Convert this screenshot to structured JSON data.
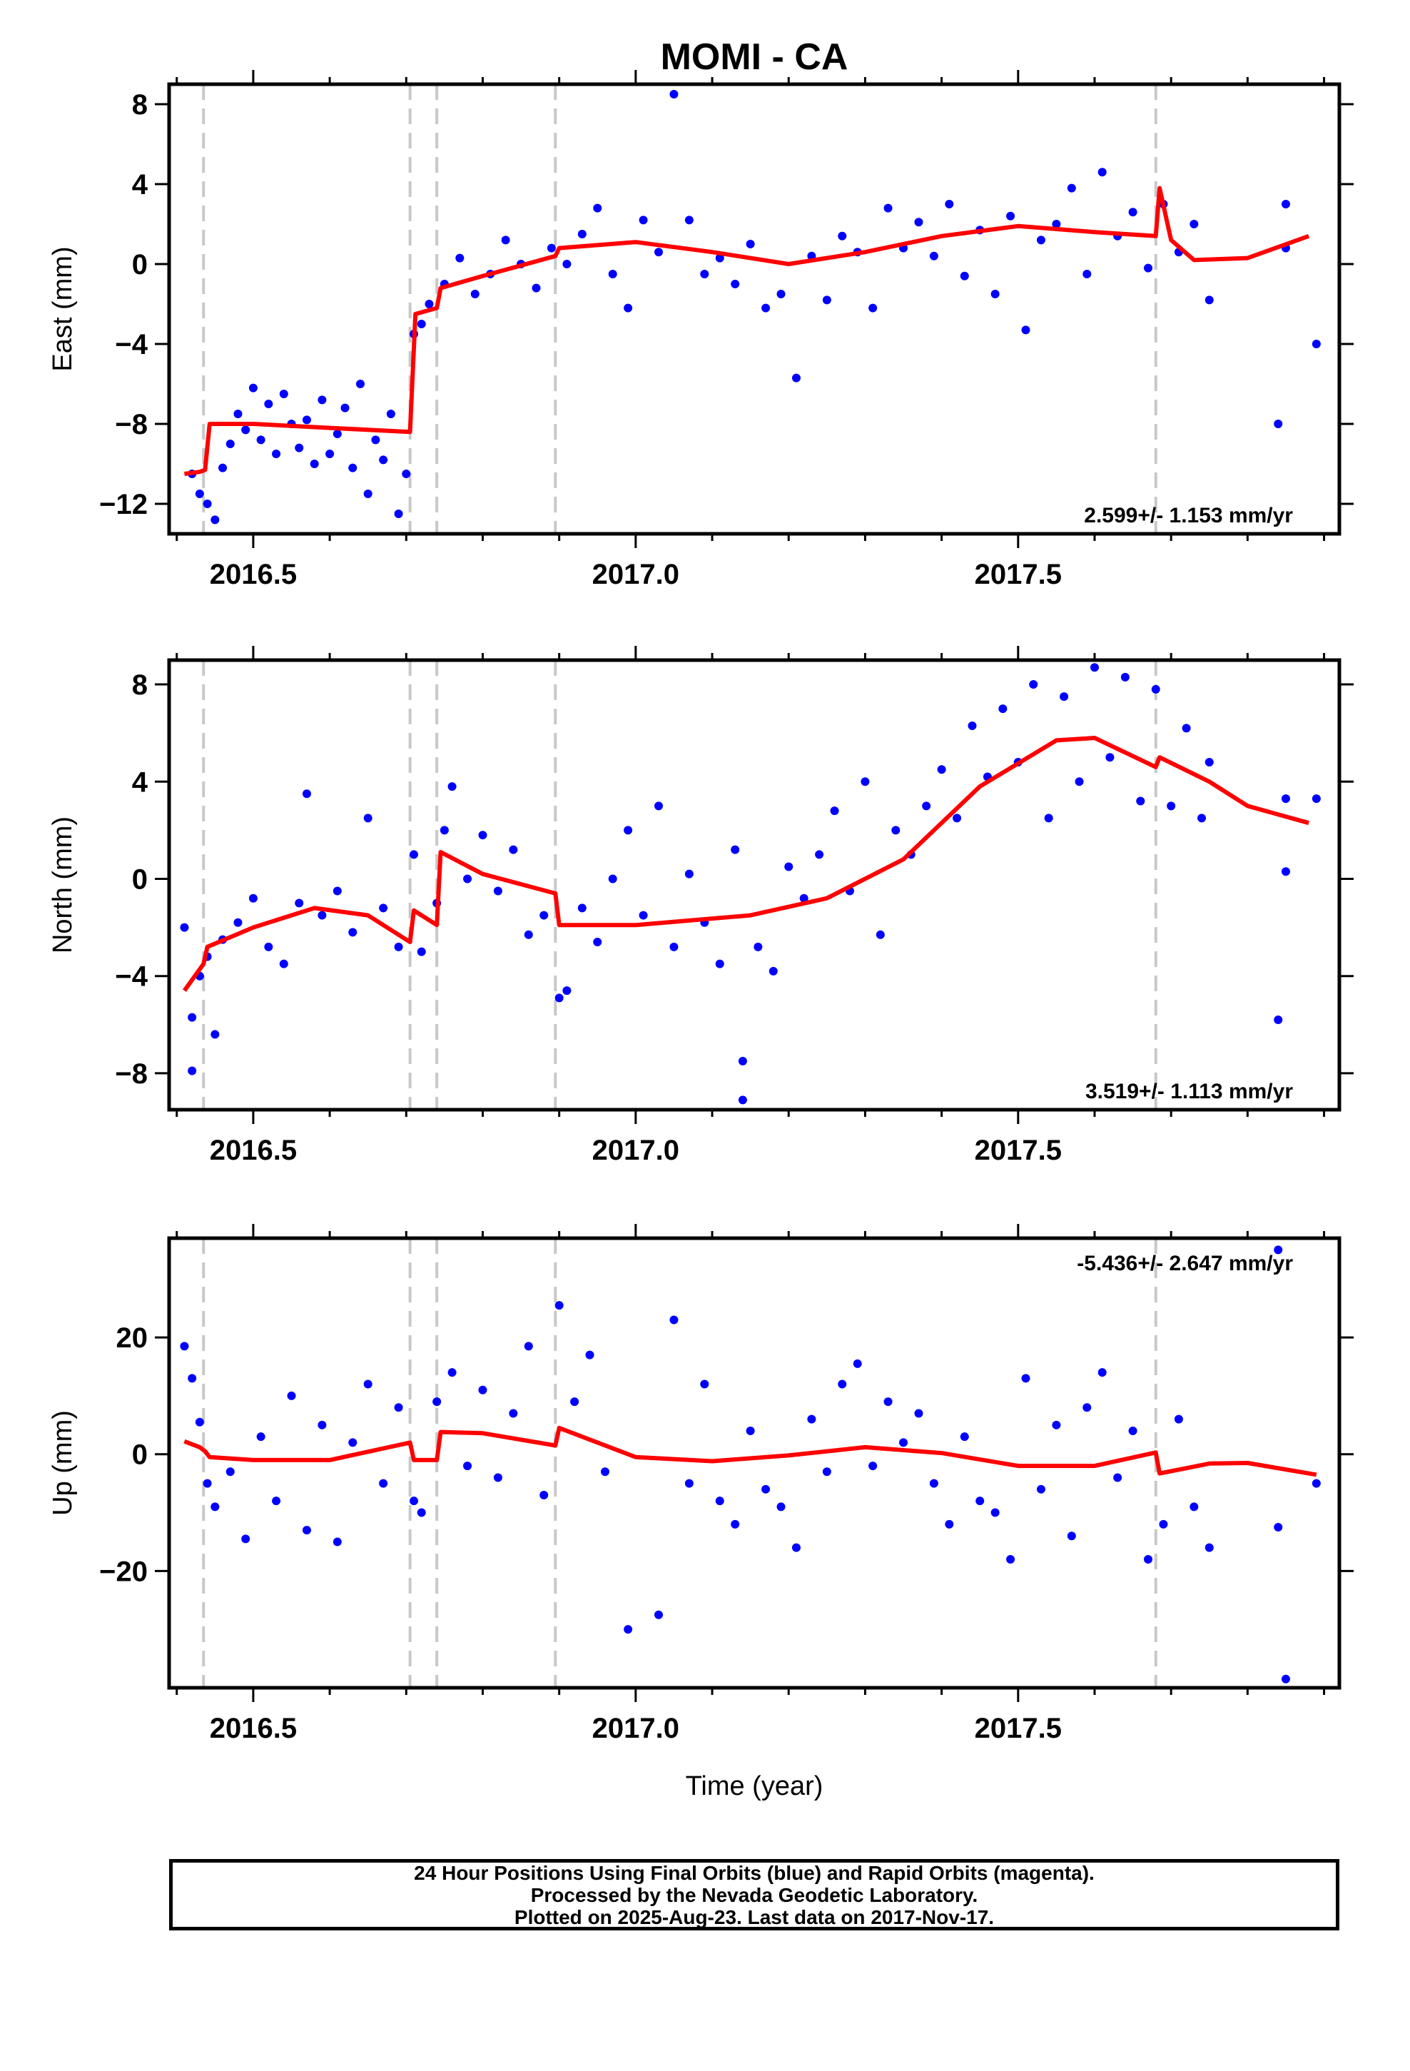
{
  "title": "MOMI - CA",
  "footer": {
    "line1": "24 Hour Positions Using Final Orbits (blue) and Rapid Orbits (magenta).",
    "line2": "Processed by the Nevada Geodetic Laboratory.",
    "line3": "Plotted on 2025-Aug-23. Last data on 2017-Nov-17."
  },
  "colors": {
    "points": "#0000ff",
    "model": "#ff0000",
    "event_lines": "#c8c8c8",
    "frame": "#000000"
  },
  "chart_data": [
    {
      "type": "scatter",
      "panel": "east",
      "ylabel": "East (mm)",
      "xlabel": "",
      "xlim": [
        2016.39,
        2017.92
      ],
      "ylim": [
        -13.5,
        9
      ],
      "yticks": [
        8,
        4,
        0,
        -4,
        -8,
        -12
      ],
      "xticks": [
        2016.5,
        2017.0,
        2017.5
      ],
      "grid": false,
      "rate_label": "2.599+/- 1.153 mm/yr",
      "rate_position": "bottom-right",
      "event_lines_x": [
        2016.435,
        2016.705,
        2016.74,
        2016.895,
        2017.68
      ],
      "model_line": [
        [
          2016.41,
          -10.5
        ],
        [
          2016.43,
          -10.4
        ],
        [
          2016.437,
          -10.3
        ],
        [
          2016.443,
          -8.0
        ],
        [
          2016.5,
          -8.0
        ],
        [
          2016.6,
          -8.2
        ],
        [
          2016.705,
          -8.4
        ],
        [
          2016.712,
          -2.5
        ],
        [
          2016.74,
          -2.2
        ],
        [
          2016.745,
          -1.2
        ],
        [
          2016.8,
          -0.6
        ],
        [
          2016.895,
          0.4
        ],
        [
          2016.9,
          0.8
        ],
        [
          2017.0,
          1.1
        ],
        [
          2017.1,
          0.6
        ],
        [
          2017.2,
          0.0
        ],
        [
          2017.3,
          0.6
        ],
        [
          2017.4,
          1.4
        ],
        [
          2017.5,
          1.9
        ],
        [
          2017.6,
          1.6
        ],
        [
          2017.68,
          1.4
        ],
        [
          2017.685,
          3.8
        ],
        [
          2017.7,
          1.2
        ],
        [
          2017.73,
          0.2
        ],
        [
          2017.8,
          0.3
        ],
        [
          2017.88,
          1.4
        ]
      ],
      "points": [
        [
          2016.42,
          -10.5
        ],
        [
          2016.43,
          -11.5
        ],
        [
          2016.44,
          -12.0
        ],
        [
          2016.45,
          -12.8
        ],
        [
          2016.46,
          -10.2
        ],
        [
          2016.47,
          -9.0
        ],
        [
          2016.48,
          -7.5
        ],
        [
          2016.49,
          -8.3
        ],
        [
          2016.5,
          -6.2
        ],
        [
          2016.51,
          -8.8
        ],
        [
          2016.52,
          -7.0
        ],
        [
          2016.53,
          -9.5
        ],
        [
          2016.54,
          -6.5
        ],
        [
          2016.55,
          -8.0
        ],
        [
          2016.56,
          -9.2
        ],
        [
          2016.57,
          -7.8
        ],
        [
          2016.58,
          -10.0
        ],
        [
          2016.59,
          -6.8
        ],
        [
          2016.6,
          -9.5
        ],
        [
          2016.61,
          -8.5
        ],
        [
          2016.62,
          -7.2
        ],
        [
          2016.63,
          -10.2
        ],
        [
          2016.64,
          -6.0
        ],
        [
          2016.65,
          -11.5
        ],
        [
          2016.66,
          -8.8
        ],
        [
          2016.67,
          -9.8
        ],
        [
          2016.68,
          -7.5
        ],
        [
          2016.69,
          -12.5
        ],
        [
          2016.7,
          -10.5
        ],
        [
          2016.71,
          -3.5
        ],
        [
          2016.72,
          -3.0
        ],
        [
          2016.73,
          -2.0
        ],
        [
          2016.75,
          -1.0
        ],
        [
          2016.77,
          0.3
        ],
        [
          2016.79,
          -1.5
        ],
        [
          2016.81,
          -0.5
        ],
        [
          2016.83,
          1.2
        ],
        [
          2016.85,
          0.0
        ],
        [
          2016.87,
          -1.2
        ],
        [
          2016.89,
          0.8
        ],
        [
          2016.91,
          0.0
        ],
        [
          2016.93,
          1.5
        ],
        [
          2016.95,
          2.8
        ],
        [
          2016.97,
          -0.5
        ],
        [
          2016.99,
          -2.2
        ],
        [
          2017.01,
          2.2
        ],
        [
          2017.03,
          0.6
        ],
        [
          2017.05,
          8.5
        ],
        [
          2017.07,
          2.2
        ],
        [
          2017.09,
          -0.5
        ],
        [
          2017.11,
          0.3
        ],
        [
          2017.13,
          -1.0
        ],
        [
          2017.15,
          1.0
        ],
        [
          2017.17,
          -2.2
        ],
        [
          2017.19,
          -1.5
        ],
        [
          2017.21,
          -5.7
        ],
        [
          2017.23,
          0.4
        ],
        [
          2017.25,
          -1.8
        ],
        [
          2017.27,
          1.4
        ],
        [
          2017.29,
          0.6
        ],
        [
          2017.31,
          -2.2
        ],
        [
          2017.33,
          2.8
        ],
        [
          2017.35,
          0.8
        ],
        [
          2017.37,
          2.1
        ],
        [
          2017.39,
          0.4
        ],
        [
          2017.41,
          3.0
        ],
        [
          2017.43,
          -0.6
        ],
        [
          2017.45,
          1.7
        ],
        [
          2017.47,
          -1.5
        ],
        [
          2017.49,
          2.4
        ],
        [
          2017.51,
          -3.3
        ],
        [
          2017.53,
          1.2
        ],
        [
          2017.55,
          2.0
        ],
        [
          2017.57,
          3.8
        ],
        [
          2017.59,
          -0.5
        ],
        [
          2017.61,
          4.6
        ],
        [
          2017.63,
          1.4
        ],
        [
          2017.65,
          2.6
        ],
        [
          2017.67,
          -0.2
        ],
        [
          2017.69,
          3.0
        ],
        [
          2017.71,
          0.6
        ],
        [
          2017.73,
          2.0
        ],
        [
          2017.75,
          -1.8
        ],
        [
          2017.84,
          -8.0
        ],
        [
          2017.85,
          0.8
        ],
        [
          2017.85,
          3.0
        ],
        [
          2017.89,
          -4.0
        ]
      ]
    },
    {
      "type": "scatter",
      "panel": "north",
      "ylabel": "North (mm)",
      "xlabel": "",
      "xlim": [
        2016.39,
        2017.92
      ],
      "ylim": [
        -9.5,
        9
      ],
      "yticks": [
        8,
        4,
        0,
        -4,
        -8
      ],
      "xticks": [
        2016.5,
        2017.0,
        2017.5
      ],
      "grid": false,
      "rate_label": "3.519+/- 1.113 mm/yr",
      "rate_position": "bottom-right",
      "event_lines_x": [
        2016.435,
        2016.705,
        2016.74,
        2016.895,
        2017.68
      ],
      "model_line": [
        [
          2016.41,
          -4.6
        ],
        [
          2016.435,
          -3.5
        ],
        [
          2016.44,
          -2.8
        ],
        [
          2016.5,
          -2.0
        ],
        [
          2016.58,
          -1.2
        ],
        [
          2016.65,
          -1.5
        ],
        [
          2016.705,
          -2.6
        ],
        [
          2016.71,
          -1.3
        ],
        [
          2016.74,
          -1.9
        ],
        [
          2016.745,
          1.1
        ],
        [
          2016.8,
          0.2
        ],
        [
          2016.895,
          -0.6
        ],
        [
          2016.9,
          -1.9
        ],
        [
          2017.0,
          -1.9
        ],
        [
          2017.15,
          -1.5
        ],
        [
          2017.25,
          -0.8
        ],
        [
          2017.35,
          0.8
        ],
        [
          2017.45,
          3.8
        ],
        [
          2017.55,
          5.7
        ],
        [
          2017.6,
          5.8
        ],
        [
          2017.68,
          4.6
        ],
        [
          2017.685,
          5.0
        ],
        [
          2017.75,
          4.0
        ],
        [
          2017.8,
          3.0
        ],
        [
          2017.88,
          2.3
        ]
      ],
      "points": [
        [
          2016.41,
          -2.0
        ],
        [
          2016.42,
          -5.7
        ],
        [
          2016.42,
          -7.9
        ],
        [
          2016.43,
          -4.0
        ],
        [
          2016.44,
          -3.2
        ],
        [
          2016.45,
          -6.4
        ],
        [
          2016.46,
          -2.5
        ],
        [
          2016.48,
          -1.8
        ],
        [
          2016.5,
          -0.8
        ],
        [
          2016.52,
          -2.8
        ],
        [
          2016.54,
          -3.5
        ],
        [
          2016.56,
          -1.0
        ],
        [
          2016.57,
          3.5
        ],
        [
          2016.59,
          -1.5
        ],
        [
          2016.61,
          -0.5
        ],
        [
          2016.63,
          -2.2
        ],
        [
          2016.65,
          2.5
        ],
        [
          2016.67,
          -1.2
        ],
        [
          2016.69,
          -2.8
        ],
        [
          2016.71,
          1.0
        ],
        [
          2016.72,
          -3.0
        ],
        [
          2016.74,
          -1.0
        ],
        [
          2016.75,
          2.0
        ],
        [
          2016.76,
          3.8
        ],
        [
          2016.78,
          0.0
        ],
        [
          2016.8,
          1.8
        ],
        [
          2016.82,
          -0.5
        ],
        [
          2016.84,
          1.2
        ],
        [
          2016.86,
          -2.3
        ],
        [
          2016.88,
          -1.5
        ],
        [
          2016.9,
          -4.9
        ],
        [
          2016.91,
          -4.6
        ],
        [
          2016.93,
          -1.2
        ],
        [
          2016.95,
          -2.6
        ],
        [
          2016.97,
          0.0
        ],
        [
          2016.99,
          2.0
        ],
        [
          2017.01,
          -1.5
        ],
        [
          2017.03,
          3.0
        ],
        [
          2017.05,
          -2.8
        ],
        [
          2017.07,
          0.2
        ],
        [
          2017.09,
          -1.8
        ],
        [
          2017.11,
          -3.5
        ],
        [
          2017.13,
          1.2
        ],
        [
          2017.14,
          -7.5
        ],
        [
          2017.14,
          -9.1
        ],
        [
          2017.16,
          -2.8
        ],
        [
          2017.18,
          -3.8
        ],
        [
          2017.2,
          0.5
        ],
        [
          2017.22,
          -0.8
        ],
        [
          2017.24,
          1.0
        ],
        [
          2017.26,
          2.8
        ],
        [
          2017.28,
          -0.5
        ],
        [
          2017.3,
          4.0
        ],
        [
          2017.32,
          -2.3
        ],
        [
          2017.34,
          2.0
        ],
        [
          2017.36,
          1.0
        ],
        [
          2017.38,
          3.0
        ],
        [
          2017.4,
          4.5
        ],
        [
          2017.42,
          2.5
        ],
        [
          2017.44,
          6.3
        ],
        [
          2017.46,
          4.2
        ],
        [
          2017.48,
          7.0
        ],
        [
          2017.5,
          4.8
        ],
        [
          2017.52,
          8.0
        ],
        [
          2017.54,
          2.5
        ],
        [
          2017.56,
          7.5
        ],
        [
          2017.58,
          4.0
        ],
        [
          2017.6,
          8.7
        ],
        [
          2017.62,
          5.0
        ],
        [
          2017.64,
          8.3
        ],
        [
          2017.66,
          3.2
        ],
        [
          2017.68,
          7.8
        ],
        [
          2017.7,
          3.0
        ],
        [
          2017.72,
          6.2
        ],
        [
          2017.74,
          2.5
        ],
        [
          2017.75,
          4.8
        ],
        [
          2017.84,
          -5.8
        ],
        [
          2017.85,
          0.3
        ],
        [
          2017.85,
          3.3
        ],
        [
          2017.89,
          3.3
        ]
      ]
    },
    {
      "type": "scatter",
      "panel": "up",
      "ylabel": "Up (mm)",
      "xlabel": "Time (year)",
      "xlim": [
        2016.39,
        2017.92
      ],
      "ylim": [
        -40,
        37
      ],
      "yticks": [
        20,
        0,
        -20
      ],
      "xticks": [
        2016.5,
        2017.0,
        2017.5
      ],
      "grid": false,
      "rate_label": "-5.436+/- 2.647 mm/yr",
      "rate_position": "top-right",
      "event_lines_x": [
        2016.435,
        2016.705,
        2016.74,
        2016.895,
        2017.68
      ],
      "model_line": [
        [
          2016.41,
          2.2
        ],
        [
          2016.43,
          1.2
        ],
        [
          2016.437,
          0.5
        ],
        [
          2016.443,
          -0.5
        ],
        [
          2016.5,
          -1.0
        ],
        [
          2016.6,
          -1.0
        ],
        [
          2016.705,
          2.0
        ],
        [
          2016.71,
          -1.0
        ],
        [
          2016.74,
          -1.0
        ],
        [
          2016.745,
          3.8
        ],
        [
          2016.8,
          3.6
        ],
        [
          2016.895,
          1.5
        ],
        [
          2016.9,
          4.5
        ],
        [
          2017.0,
          -0.5
        ],
        [
          2017.1,
          -1.2
        ],
        [
          2017.2,
          -0.2
        ],
        [
          2017.3,
          1.2
        ],
        [
          2017.4,
          0.2
        ],
        [
          2017.5,
          -2.0
        ],
        [
          2017.6,
          -2.0
        ],
        [
          2017.68,
          0.3
        ],
        [
          2017.685,
          -3.3
        ],
        [
          2017.75,
          -1.6
        ],
        [
          2017.8,
          -1.5
        ],
        [
          2017.89,
          -3.5
        ]
      ],
      "points": [
        [
          2016.41,
          18.5
        ],
        [
          2016.42,
          13.0
        ],
        [
          2016.43,
          5.5
        ],
        [
          2016.44,
          -5.0
        ],
        [
          2016.45,
          -9.0
        ],
        [
          2016.47,
          -3.0
        ],
        [
          2016.49,
          -14.5
        ],
        [
          2016.51,
          3.0
        ],
        [
          2016.53,
          -8.0
        ],
        [
          2016.55,
          10.0
        ],
        [
          2016.57,
          -13.0
        ],
        [
          2016.59,
          5.0
        ],
        [
          2016.61,
          -15.0
        ],
        [
          2016.63,
          2.0
        ],
        [
          2016.65,
          12.0
        ],
        [
          2016.67,
          -5.0
        ],
        [
          2016.69,
          8.0
        ],
        [
          2016.71,
          -8.0
        ],
        [
          2016.72,
          -10.0
        ],
        [
          2016.74,
          9.0
        ],
        [
          2016.76,
          14.0
        ],
        [
          2016.78,
          -2.0
        ],
        [
          2016.8,
          11.0
        ],
        [
          2016.82,
          -4.0
        ],
        [
          2016.84,
          7.0
        ],
        [
          2016.86,
          18.5
        ],
        [
          2016.88,
          -7.0
        ],
        [
          2016.9,
          25.5
        ],
        [
          2016.92,
          9.0
        ],
        [
          2016.94,
          17.0
        ],
        [
          2016.96,
          -3.0
        ],
        [
          2016.99,
          -30.0
        ],
        [
          2017.03,
          -27.5
        ],
        [
          2017.05,
          23.0
        ],
        [
          2017.07,
          -5.0
        ],
        [
          2017.09,
          12.0
        ],
        [
          2017.11,
          -8.0
        ],
        [
          2017.13,
          -12.0
        ],
        [
          2017.15,
          4.0
        ],
        [
          2017.17,
          -6.0
        ],
        [
          2017.19,
          -9.0
        ],
        [
          2017.21,
          -16.0
        ],
        [
          2017.23,
          6.0
        ],
        [
          2017.25,
          -3.0
        ],
        [
          2017.27,
          12.0
        ],
        [
          2017.29,
          15.5
        ],
        [
          2017.31,
          -2.0
        ],
        [
          2017.33,
          9.0
        ],
        [
          2017.35,
          2.0
        ],
        [
          2017.37,
          7.0
        ],
        [
          2017.39,
          -5.0
        ],
        [
          2017.41,
          -12.0
        ],
        [
          2017.43,
          3.0
        ],
        [
          2017.45,
          -8.0
        ],
        [
          2017.47,
          -10.0
        ],
        [
          2017.49,
          -18.0
        ],
        [
          2017.51,
          13.0
        ],
        [
          2017.53,
          -6.0
        ],
        [
          2017.55,
          5.0
        ],
        [
          2017.57,
          -14.0
        ],
        [
          2017.59,
          8.0
        ],
        [
          2017.61,
          14.0
        ],
        [
          2017.63,
          -4.0
        ],
        [
          2017.65,
          4.0
        ],
        [
          2017.67,
          -18.0
        ],
        [
          2017.69,
          -12.0
        ],
        [
          2017.71,
          6.0
        ],
        [
          2017.73,
          -9.0
        ],
        [
          2017.75,
          -16.0
        ],
        [
          2017.84,
          -12.5
        ],
        [
          2017.84,
          35.0
        ],
        [
          2017.85,
          -38.5
        ],
        [
          2017.89,
          -5.0
        ]
      ]
    }
  ]
}
